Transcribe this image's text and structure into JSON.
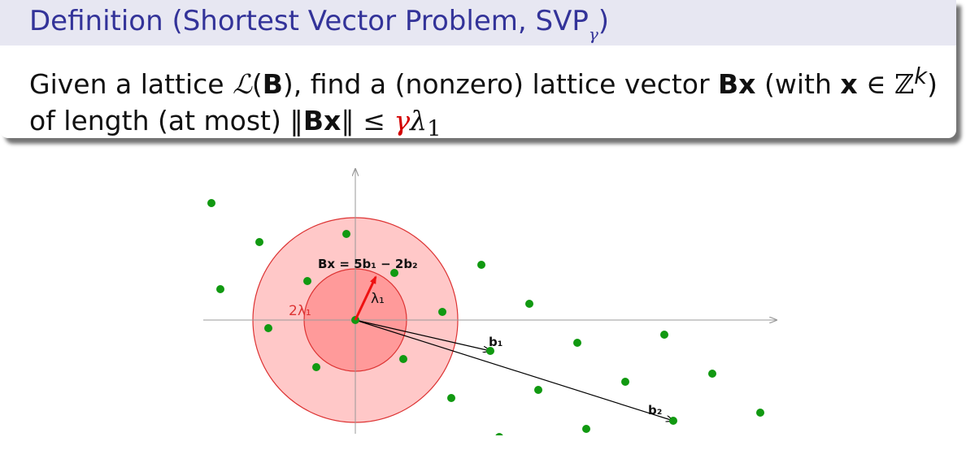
{
  "definition": {
    "title_main": "Definition (Shortest Vector Problem, SVP",
    "title_sub": "γ",
    "title_end": ")",
    "body": {
      "t1": "Given a lattice ",
      "t2": "ℒ",
      "t3": "(",
      "t4": "B",
      "t5": "), find a (nonzero) lattice vector ",
      "t6": "Bx",
      "t7": " (with ",
      "t8": "x",
      "t9": " ∈ ℤ",
      "t10": "k",
      "t11": ") of length (at most) ‖",
      "t12": "Bx",
      "t13": "‖ ≤ ",
      "t14": "γ",
      "t15": "λ",
      "t16": "1"
    }
  },
  "figure": {
    "colors": {
      "point": "#119911",
      "circle_outer_fill": "#ffc8c8",
      "circle_inner_fill": "#ff9a9a",
      "circle_stroke": "#dd3333",
      "shortest_vector": "#ee1111",
      "axis": "#999999",
      "basis": "#000000"
    },
    "labels": {
      "bx": "Bx = 5b₁ − 2b₂",
      "lambda1": "λ₁",
      "two_lambda1": "2λ₁",
      "b1": "b₁",
      "b2": "b₂"
    }
  }
}
